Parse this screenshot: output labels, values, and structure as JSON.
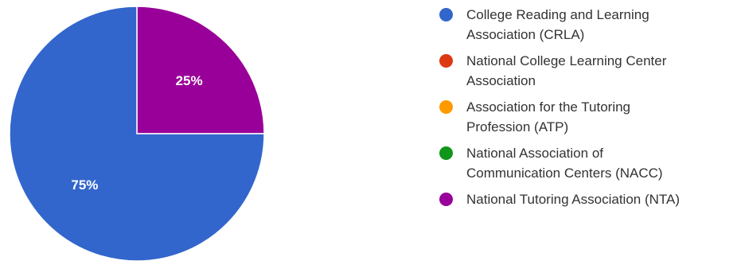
{
  "chart_data": {
    "type": "pie",
    "title": "",
    "legend_position": "right",
    "slices": [
      {
        "label_lines": [
          "College Reading and Learning",
          "Association (CRLA)"
        ],
        "value": 75,
        "display": "75%",
        "color": "#3366cc"
      },
      {
        "label_lines": [
          "National College Learning Center",
          "Association"
        ],
        "value": 0,
        "display": "",
        "color": "#dc3912"
      },
      {
        "label_lines": [
          "Association for the Tutoring",
          "Profession (ATP)"
        ],
        "value": 0,
        "display": "",
        "color": "#ff9900"
      },
      {
        "label_lines": [
          "National Association of",
          "Communication Centers (NACC)"
        ],
        "value": 0,
        "display": "",
        "color": "#109618"
      },
      {
        "label_lines": [
          "National Tutoring Association (NTA)"
        ],
        "value": 25,
        "display": "25%",
        "color": "#990099"
      }
    ]
  }
}
